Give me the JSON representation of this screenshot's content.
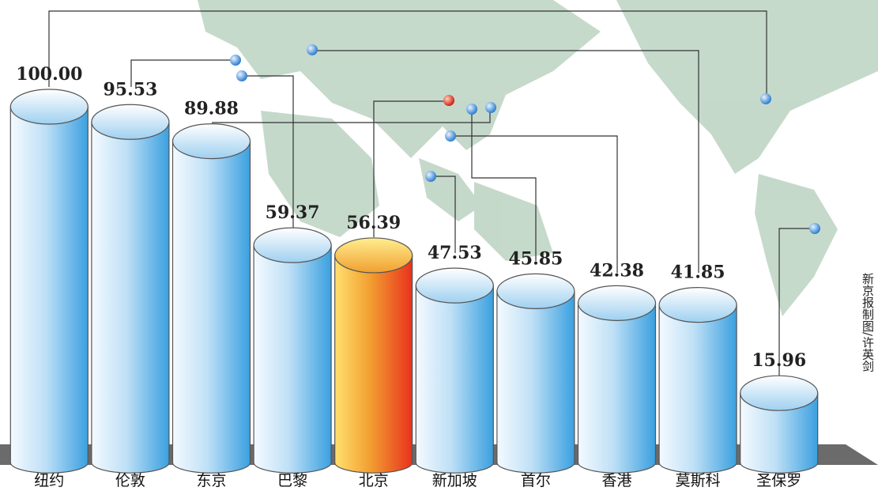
{
  "chart_data": {
    "type": "bar",
    "categories": [
      "纽约",
      "伦敦",
      "东京",
      "巴黎",
      "北京",
      "新加坡",
      "首尔",
      "香港",
      "莫斯科",
      "圣保罗"
    ],
    "values": [
      100.0,
      95.53,
      89.88,
      59.37,
      56.39,
      47.53,
      45.85,
      42.38,
      41.85,
      15.96
    ],
    "value_labels": [
      "100.00",
      "95.53",
      "89.88",
      "59.37",
      "56.39",
      "47.53",
      "45.85",
      "42.38",
      "41.85",
      "15.96"
    ],
    "colors": [
      "#3aa0e0",
      "#3aa0e0",
      "#3aa0e0",
      "#3aa0e0",
      "#e8321e",
      "#3aa0e0",
      "#3aa0e0",
      "#3aa0e0",
      "#3aa0e0",
      "#3aa0e0"
    ],
    "credit": "新京报制图/许英剑"
  }
}
